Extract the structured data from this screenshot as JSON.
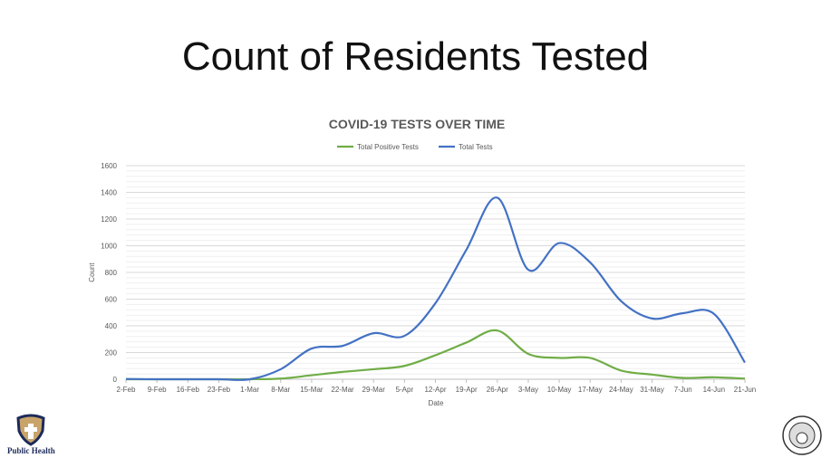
{
  "slide": {
    "title": "Count of Residents Tested",
    "logo_left_label": "Public Health",
    "logo_right_label": "City of Framingham"
  },
  "chart_data": {
    "type": "line",
    "title": "COVID-19 TESTS OVER TIME",
    "xlabel": "Date",
    "ylabel": "Count",
    "ylim": [
      0,
      1600
    ],
    "yticks": [
      0,
      200,
      400,
      600,
      800,
      1000,
      1200,
      1400,
      1600
    ],
    "grid": true,
    "legend_position": "top",
    "categories": [
      "2-Feb",
      "9-Feb",
      "16-Feb",
      "23-Feb",
      "1-Mar",
      "8-Mar",
      "15-Mar",
      "22-Mar",
      "29-Mar",
      "5-Apr",
      "12-Apr",
      "19-Apr",
      "26-Apr",
      "3-May",
      "10-May",
      "17-May",
      "24-May",
      "31-May",
      "7-Jun",
      "14-Jun",
      "21-Jun"
    ],
    "series": [
      {
        "name": "Total Positive Tests",
        "color": "#70ad47",
        "values": [
          0,
          0,
          0,
          0,
          0,
          5,
          30,
          55,
          75,
          100,
          180,
          275,
          365,
          190,
          160,
          160,
          65,
          35,
          10,
          15,
          5
        ]
      },
      {
        "name": "Total Tests",
        "color": "#4472c4",
        "values": [
          2,
          0,
          0,
          0,
          0,
          75,
          230,
          250,
          345,
          325,
          570,
          970,
          1360,
          820,
          1020,
          875,
          585,
          455,
          495,
          490,
          125
        ]
      }
    ]
  }
}
